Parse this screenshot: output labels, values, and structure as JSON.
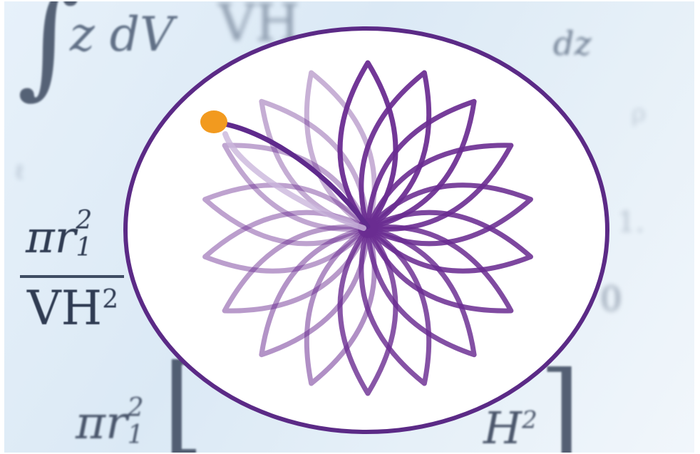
{
  "math_background": {
    "integral_top": "z dV",
    "vh_top": "VH",
    "dz_top": "dz",
    "frac_left_numerator": "πr",
    "frac_left_sup": "2",
    "frac_left_sub": "1",
    "frac_left_denominator": "VH",
    "frac_left_den_sup": "2",
    "bottom_pi": "πr",
    "bottom_sup": "2",
    "bottom_sub": "1",
    "bottom_h": "H",
    "bottom_h_sup": "2",
    "right_zero": "0"
  },
  "logo": {
    "ring_color": "#5b2a86",
    "petal_color": "#6a2c91",
    "dot_color": "#f29a1f",
    "background_color": "#ffffff"
  }
}
